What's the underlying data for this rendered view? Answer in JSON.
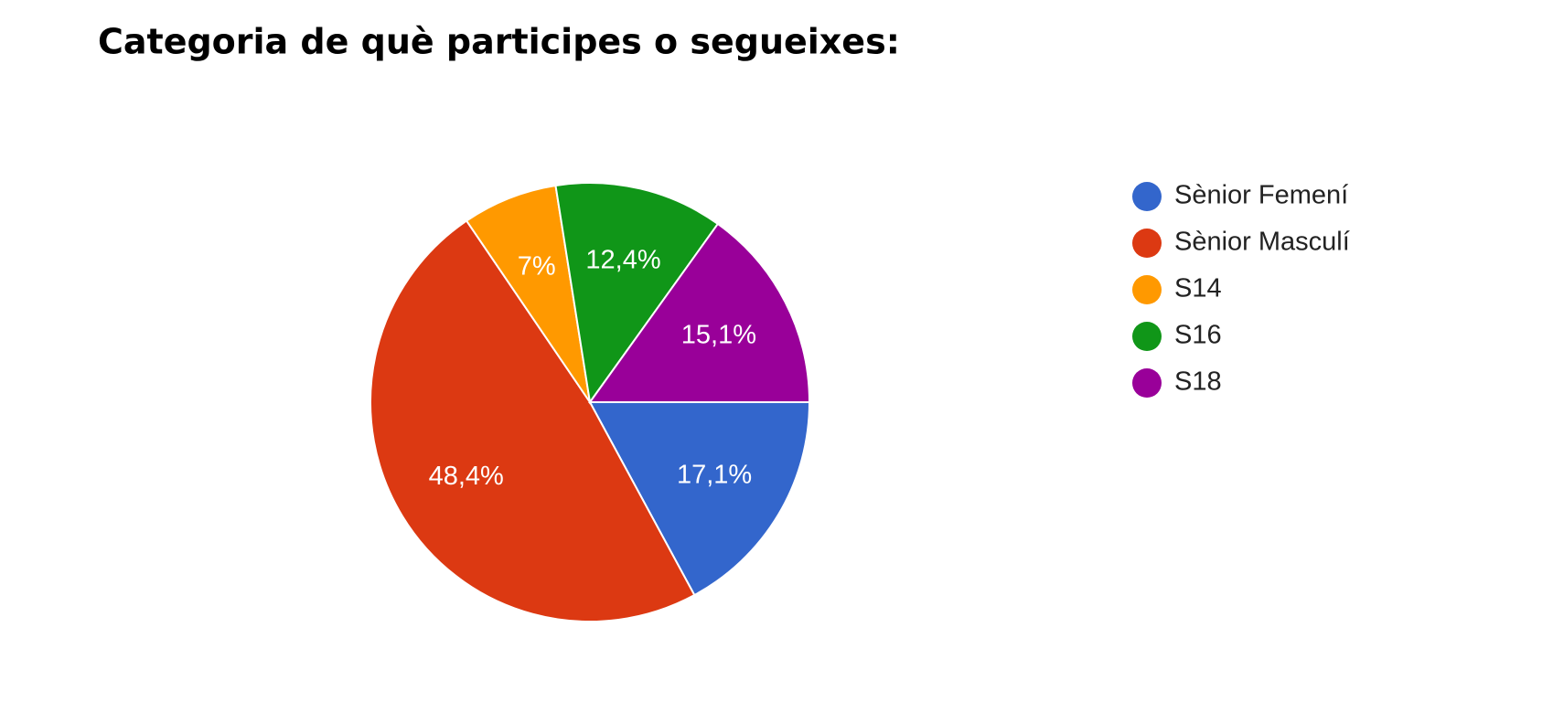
{
  "chart_data": {
    "type": "pie",
    "title": "Categoria de què participes o segueixes:",
    "categories": [
      "Sènior Femení",
      "Sènior Masculí",
      "S14",
      "S16",
      "S18"
    ],
    "values": [
      17.1,
      48.4,
      7,
      12.4,
      15.1
    ],
    "value_labels": [
      "17,1%",
      "48,4%",
      "7%",
      "12,4%",
      "15,1%"
    ],
    "colors": [
      "#3366cc",
      "#dc3912",
      "#ff9900",
      "#109618",
      "#990099"
    ],
    "legend": "right"
  }
}
